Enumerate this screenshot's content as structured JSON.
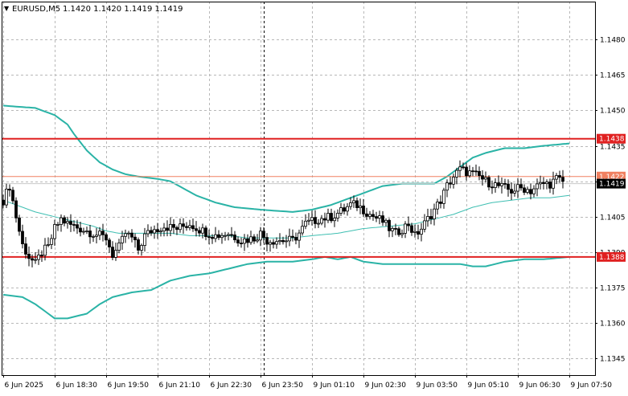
{
  "header": {
    "symbol_label": "EURUSD,M5",
    "ohlc_text": "1.1420 1.1420 1.1419 1.1419",
    "menu_glyph": "▼"
  },
  "colors": {
    "background": "#ffffff",
    "grid": "#b8b8b8",
    "axis": "#000000",
    "candle_up_body": "#ffffff",
    "candle_down_body": "#000000",
    "candle_outline": "#000000",
    "bollinger_outer": "#2ab3a6",
    "bollinger_middle": "#3fbfb2",
    "level_line": "#e02020",
    "level_line_soft": "#f08060",
    "level_badge_bg": "#e02020",
    "level_badge_text": "#ffffff",
    "price_badge_bg": "#000000",
    "price_badge_text": "#ffffff"
  },
  "chart_data": {
    "type": "candlestick",
    "symbol": "EURUSD",
    "timeframe": "M5",
    "ylim": [
      1.1338,
      1.1496
    ],
    "y_ticks": [
      {
        "value": 1.148,
        "label": "1.1480"
      },
      {
        "value": 1.1465,
        "label": "1.1465"
      },
      {
        "value": 1.145,
        "label": "1.1450"
      },
      {
        "value": 1.1435,
        "label": "1.1435"
      },
      {
        "value": 1.142,
        "label": "1.1420"
      },
      {
        "value": 1.1405,
        "label": "1.1405"
      },
      {
        "value": 1.139,
        "label": "1.1390"
      },
      {
        "value": 1.1375,
        "label": "1.1375"
      },
      {
        "value": 1.136,
        "label": "1.1360"
      },
      {
        "value": 1.1345,
        "label": "1.1345"
      }
    ],
    "x_ticks": [
      {
        "bar": 0,
        "label": "6 Jun 2025"
      },
      {
        "bar": 16,
        "label": "6 Jun 18:30"
      },
      {
        "bar": 32,
        "label": "6 Jun 19:50"
      },
      {
        "bar": 48,
        "label": "6 Jun 21:10"
      },
      {
        "bar": 64,
        "label": "6 Jun 22:30"
      },
      {
        "bar": 80,
        "label": "6 Jun 23:50"
      },
      {
        "bar": 96,
        "label": "9 Jun 01:10"
      },
      {
        "bar": 112,
        "label": "9 Jun 02:30"
      },
      {
        "bar": 128,
        "label": "9 Jun 03:50"
      },
      {
        "bar": 144,
        "label": "9 Jun 05:10"
      },
      {
        "bar": 160,
        "label": "9 Jun 06:30"
      },
      {
        "bar": 176,
        "label": "9 Jun 07:50"
      }
    ],
    "bar_count": 180,
    "session_divider_bar": 81,
    "levels": [
      {
        "value": 1.1438,
        "label": "1.1438",
        "style": "strong"
      },
      {
        "value": 1.1422,
        "label": "1.1422",
        "style": "soft"
      },
      {
        "value": 1.1388,
        "label": "1.1388",
        "style": "strong"
      }
    ],
    "current_price": {
      "value": 1.1419,
      "label": "1.1419"
    },
    "close_path": [
      [
        0,
        1.1412
      ],
      [
        2,
        1.1418
      ],
      [
        4,
        1.1405
      ],
      [
        6,
        1.1393
      ],
      [
        8,
        1.1388
      ],
      [
        10,
        1.1385
      ],
      [
        12,
        1.139
      ],
      [
        14,
        1.1392
      ],
      [
        16,
        1.14
      ],
      [
        18,
        1.1404
      ],
      [
        20,
        1.1402
      ],
      [
        24,
        1.14
      ],
      [
        28,
        1.1398
      ],
      [
        32,
        1.1396
      ],
      [
        34,
        1.1389
      ],
      [
        36,
        1.1392
      ],
      [
        38,
        1.1398
      ],
      [
        40,
        1.1396
      ],
      [
        42,
        1.1391
      ],
      [
        44,
        1.1397
      ],
      [
        46,
        1.1399
      ],
      [
        50,
        1.1401
      ],
      [
        54,
        1.14
      ],
      [
        58,
        1.1402
      ],
      [
        62,
        1.1399
      ],
      [
        66,
        1.1397
      ],
      [
        70,
        1.1398
      ],
      [
        74,
        1.1395
      ],
      [
        78,
        1.1396
      ],
      [
        80,
        1.1398
      ],
      [
        82,
        1.1395
      ],
      [
        86,
        1.1395
      ],
      [
        90,
        1.1395
      ],
      [
        92,
        1.1398
      ],
      [
        94,
        1.1402
      ],
      [
        98,
        1.1404
      ],
      [
        102,
        1.1405
      ],
      [
        106,
        1.1408
      ],
      [
        108,
        1.141
      ],
      [
        110,
        1.141
      ],
      [
        112,
        1.1408
      ],
      [
        114,
        1.1406
      ],
      [
        118,
        1.1403
      ],
      [
        120,
        1.14
      ],
      [
        122,
        1.1398
      ],
      [
        124,
        1.14
      ],
      [
        126,
        1.1402
      ],
      [
        128,
        1.1397
      ],
      [
        130,
        1.14
      ],
      [
        132,
        1.1404
      ],
      [
        134,
        1.1408
      ],
      [
        136,
        1.1412
      ],
      [
        138,
        1.1418
      ],
      [
        140,
        1.1422
      ],
      [
        142,
        1.1425
      ],
      [
        144,
        1.1424
      ],
      [
        146,
        1.1423
      ],
      [
        148,
        1.1422
      ],
      [
        150,
        1.142
      ],
      [
        152,
        1.1419
      ],
      [
        154,
        1.1418
      ],
      [
        156,
        1.1417
      ],
      [
        158,
        1.1416
      ],
      [
        160,
        1.1417
      ],
      [
        162,
        1.1417
      ],
      [
        164,
        1.1416
      ],
      [
        166,
        1.1418
      ],
      [
        168,
        1.1419
      ],
      [
        170,
        1.1419
      ],
      [
        172,
        1.1421
      ],
      [
        174,
        1.142
      ]
    ],
    "bollinger": {
      "upper": [
        [
          0,
          1.1452
        ],
        [
          10,
          1.1451
        ],
        [
          16,
          1.1448
        ],
        [
          20,
          1.1444
        ],
        [
          22,
          1.144
        ],
        [
          26,
          1.1433
        ],
        [
          30,
          1.1428
        ],
        [
          34,
          1.1425
        ],
        [
          38,
          1.1423
        ],
        [
          42,
          1.1422
        ],
        [
          48,
          1.1421
        ],
        [
          52,
          1.142
        ],
        [
          56,
          1.1417
        ],
        [
          60,
          1.1414
        ],
        [
          66,
          1.1411
        ],
        [
          72,
          1.1409
        ],
        [
          80,
          1.1408
        ],
        [
          90,
          1.1407
        ],
        [
          96,
          1.1408
        ],
        [
          102,
          1.141
        ],
        [
          106,
          1.1412
        ],
        [
          110,
          1.1414
        ],
        [
          114,
          1.1416
        ],
        [
          118,
          1.1418
        ],
        [
          124,
          1.1419
        ],
        [
          130,
          1.1419
        ],
        [
          134,
          1.1419
        ],
        [
          138,
          1.1422
        ],
        [
          142,
          1.1426
        ],
        [
          146,
          1.143
        ],
        [
          150,
          1.1432
        ],
        [
          156,
          1.1434
        ],
        [
          162,
          1.1434
        ],
        [
          168,
          1.1435
        ],
        [
          176,
          1.1436
        ]
      ],
      "middle": [
        [
          0,
          1.1412
        ],
        [
          4,
          1.141
        ],
        [
          10,
          1.1407
        ],
        [
          16,
          1.1405
        ],
        [
          22,
          1.1403
        ],
        [
          28,
          1.1401
        ],
        [
          32,
          1.1399
        ],
        [
          36,
          1.1398
        ],
        [
          40,
          1.1398
        ],
        [
          46,
          1.1398
        ],
        [
          52,
          1.1398
        ],
        [
          58,
          1.1397
        ],
        [
          64,
          1.1397
        ],
        [
          70,
          1.1397
        ],
        [
          76,
          1.1396
        ],
        [
          82,
          1.1396
        ],
        [
          90,
          1.1396
        ],
        [
          96,
          1.1397
        ],
        [
          104,
          1.1398
        ],
        [
          112,
          1.14
        ],
        [
          120,
          1.1401
        ],
        [
          128,
          1.1402
        ],
        [
          134,
          1.1404
        ],
        [
          140,
          1.1406
        ],
        [
          146,
          1.1409
        ],
        [
          152,
          1.1411
        ],
        [
          158,
          1.1412
        ],
        [
          164,
          1.1413
        ],
        [
          170,
          1.1413
        ],
        [
          176,
          1.1414
        ]
      ],
      "lower": [
        [
          0,
          1.1372
        ],
        [
          6,
          1.1371
        ],
        [
          10,
          1.1368
        ],
        [
          14,
          1.1364
        ],
        [
          16,
          1.1362
        ],
        [
          20,
          1.1362
        ],
        [
          26,
          1.1364
        ],
        [
          30,
          1.1368
        ],
        [
          34,
          1.1371
        ],
        [
          40,
          1.1373
        ],
        [
          46,
          1.1374
        ],
        [
          52,
          1.1378
        ],
        [
          58,
          1.138
        ],
        [
          64,
          1.1381
        ],
        [
          70,
          1.1383
        ],
        [
          76,
          1.1385
        ],
        [
          82,
          1.1386
        ],
        [
          90,
          1.1386
        ],
        [
          96,
          1.1387
        ],
        [
          100,
          1.1388
        ],
        [
          104,
          1.1387
        ],
        [
          108,
          1.1388
        ],
        [
          112,
          1.1386
        ],
        [
          118,
          1.1385
        ],
        [
          124,
          1.1385
        ],
        [
          130,
          1.1385
        ],
        [
          136,
          1.1385
        ],
        [
          142,
          1.1385
        ],
        [
          146,
          1.1384
        ],
        [
          150,
          1.1384
        ],
        [
          156,
          1.1386
        ],
        [
          162,
          1.1387
        ],
        [
          168,
          1.1387
        ],
        [
          176,
          1.1388
        ]
      ]
    }
  }
}
